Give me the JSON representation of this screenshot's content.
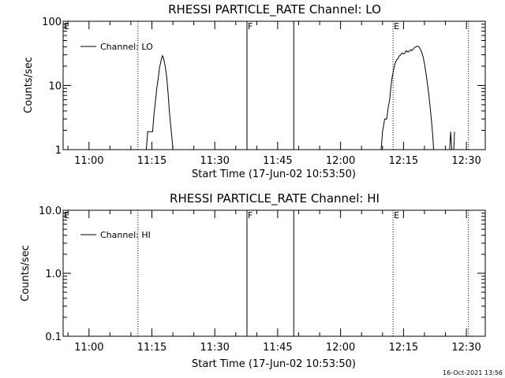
{
  "footer": "16-Oct-2021 13:56",
  "chart_data": [
    {
      "type": "line",
      "title": "RHESSI PARTICLE_RATE Channel: LO",
      "xlabel": "Start Time (17-Jun-02 10:53:50)",
      "ylabel": "Counts/sec",
      "yscale": "log",
      "ylim": [
        1,
        100
      ],
      "yticks": [
        "1",
        "10",
        "100"
      ],
      "xlim": [
        "10:53:50",
        "12:34:30"
      ],
      "xticks": [
        "11:00",
        "11:15",
        "11:30",
        "11:45",
        "12:00",
        "12:15",
        "12:30"
      ],
      "grid": false,
      "legend_position": "top-left",
      "series": [
        {
          "name": "Channel: LO",
          "segments": [
            [
              [
                "11:13:40",
                1.0
              ],
              [
                "11:14:00",
                1.9
              ],
              [
                "11:15:10",
                1.9
              ],
              [
                "11:15:30",
                3.5
              ],
              [
                "11:15:50",
                5.5
              ],
              [
                "11:16:10",
                9.0
              ],
              [
                "11:16:30",
                13
              ],
              [
                "11:16:50",
                19
              ],
              [
                "11:17:10",
                24
              ],
              [
                "11:17:30",
                29
              ],
              [
                "11:17:50",
                26
              ],
              [
                "11:18:10",
                20
              ],
              [
                "11:18:30",
                14
              ],
              [
                "11:18:50",
                8.0
              ],
              [
                "11:19:10",
                4.0
              ],
              [
                "11:19:30",
                2.3
              ],
              [
                "11:19:50",
                1.4
              ],
              [
                "11:20:00",
                1.0
              ]
            ],
            [
              [
                "12:09:40",
                1.0
              ],
              [
                "12:10:00",
                1.9
              ],
              [
                "12:10:30",
                3.0
              ],
              [
                "12:11:00",
                3.0
              ],
              [
                "12:11:20",
                4.5
              ],
              [
                "12:11:40",
                5.8
              ],
              [
                "12:12:00",
                9.5
              ],
              [
                "12:12:20",
                14
              ],
              [
                "12:12:40",
                18
              ],
              [
                "12:13:00",
                22
              ],
              [
                "12:13:20",
                25
              ],
              [
                "12:13:40",
                26
              ],
              [
                "12:14:00",
                29
              ],
              [
                "12:14:20",
                30
              ],
              [
                "12:14:40",
                32
              ],
              [
                "12:15:00",
                31
              ],
              [
                "12:15:20",
                32
              ],
              [
                "12:15:40",
                35
              ],
              [
                "12:16:00",
                33
              ],
              [
                "12:16:20",
                34
              ],
              [
                "12:16:40",
                36
              ],
              [
                "12:17:00",
                35
              ],
              [
                "12:17:20",
                37
              ],
              [
                "12:17:40",
                39
              ],
              [
                "12:18:00",
                40
              ],
              [
                "12:18:20",
                41
              ],
              [
                "12:18:40",
                40
              ],
              [
                "12:19:00",
                37
              ],
              [
                "12:19:20",
                33
              ],
              [
                "12:19:40",
                28
              ],
              [
                "12:20:00",
                22
              ],
              [
                "12:20:20",
                16
              ],
              [
                "12:20:40",
                11
              ],
              [
                "12:21:00",
                7.5
              ],
              [
                "12:21:20",
                4.8
              ],
              [
                "12:21:40",
                2.8
              ],
              [
                "12:22:00",
                1.6
              ],
              [
                "12:22:10",
                1.0
              ]
            ],
            [
              [
                "12:26:00",
                1.0
              ],
              [
                "12:26:15",
                1.9
              ],
              [
                "12:26:30",
                1.0
              ],
              [
                "12:27:00",
                1.0
              ],
              [
                "12:27:10",
                1.9
              ]
            ]
          ]
        }
      ],
      "annotations": [
        {
          "label": "E",
          "time": "10:53:50",
          "style": "dotted"
        },
        {
          "label": "",
          "time": "11:11:40",
          "style": "dotted"
        },
        {
          "label": "F",
          "time": "11:37:40",
          "style": "solid"
        },
        {
          "label": "",
          "time": "11:48:50",
          "style": "solid"
        },
        {
          "label": "E",
          "time": "12:12:30",
          "style": "dotted"
        },
        {
          "label": "",
          "time": "12:30:30",
          "style": "dotted"
        }
      ]
    },
    {
      "type": "line",
      "title": "RHESSI PARTICLE_RATE Channel: HI",
      "xlabel": "Start Time (17-Jun-02 10:53:50)",
      "ylabel": "Counts/sec",
      "yscale": "log",
      "ylim": [
        0.1,
        10
      ],
      "yticks": [
        "0.1",
        "1.0",
        "10.0"
      ],
      "xlim": [
        "10:53:50",
        "12:34:30"
      ],
      "xticks": [
        "11:00",
        "11:15",
        "11:30",
        "11:45",
        "12:00",
        "12:15",
        "12:30"
      ],
      "grid": false,
      "legend_position": "top-left",
      "series": [
        {
          "name": "Channel: HI",
          "segments": []
        }
      ],
      "annotations": [
        {
          "label": "E",
          "time": "10:53:50",
          "style": "dotted"
        },
        {
          "label": "",
          "time": "11:11:40",
          "style": "dotted"
        },
        {
          "label": "F",
          "time": "11:37:40",
          "style": "solid"
        },
        {
          "label": "",
          "time": "11:48:50",
          "style": "solid"
        },
        {
          "label": "E",
          "time": "12:12:30",
          "style": "dotted"
        },
        {
          "label": "",
          "time": "12:30:30",
          "style": "dotted"
        }
      ]
    }
  ]
}
